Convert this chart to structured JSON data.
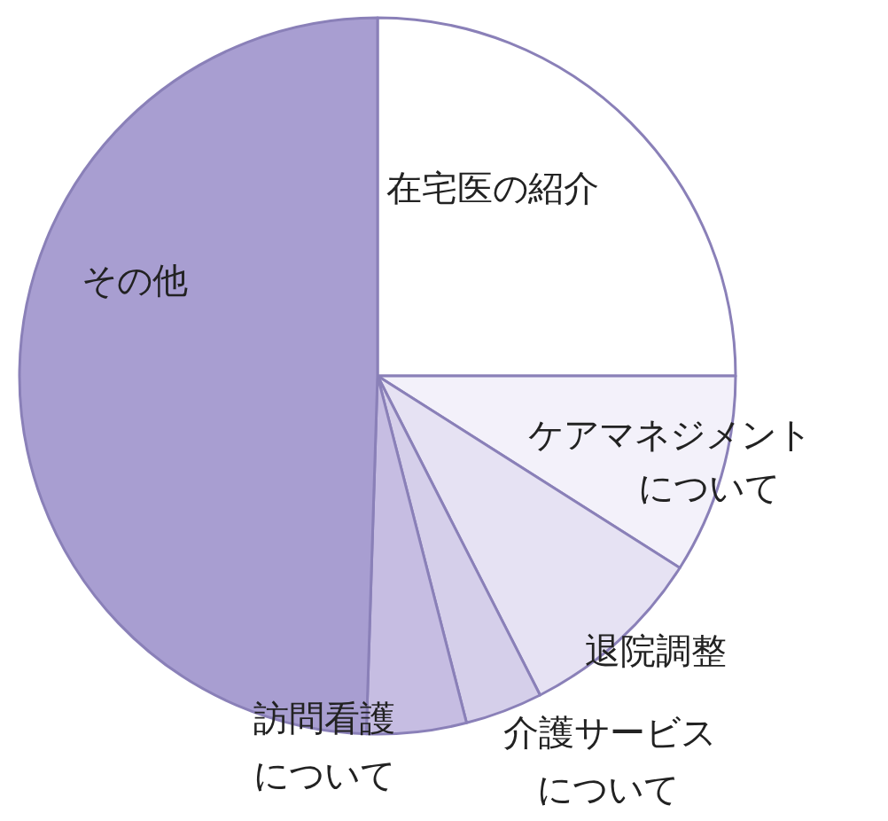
{
  "chart_data": {
    "type": "pie",
    "categories": [
      "在宅医の紹介",
      "ケアマネジメントについて",
      "退院調整",
      "介護サービスについて",
      "訪問看護について",
      "その他"
    ],
    "values": [
      25,
      9,
      8.5,
      3.5,
      4.5,
      49.5
    ],
    "colors": [
      "#ffffff",
      "#f3f1fa",
      "#e6e2f3",
      "#d5cfea",
      "#c6bde2",
      "#a89ed1"
    ]
  }
}
